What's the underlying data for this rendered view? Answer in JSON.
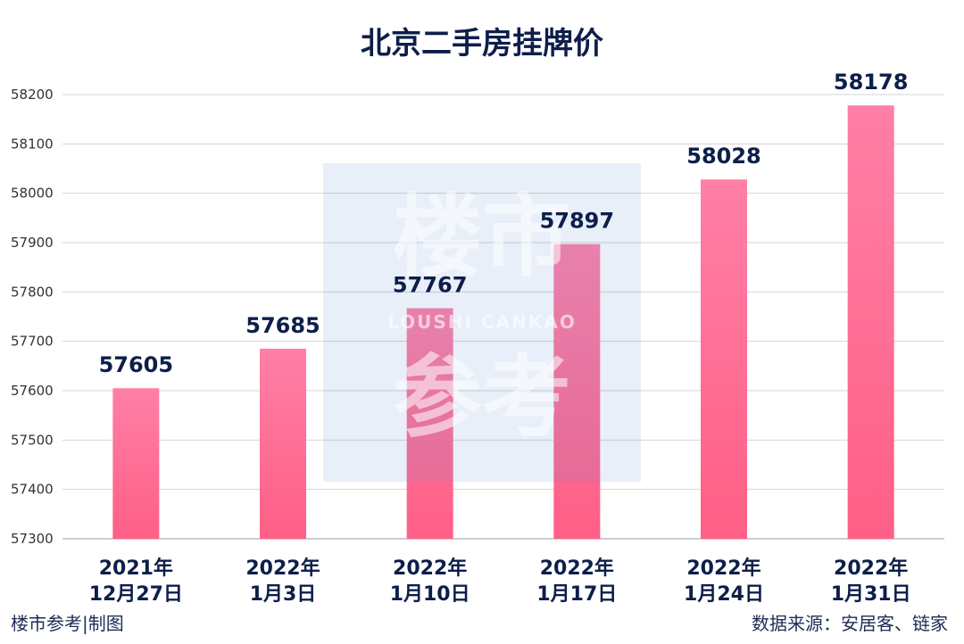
{
  "chart_data": {
    "type": "bar",
    "title": "北京二手房挂牌价",
    "categories": [
      [
        "2021年",
        "12月27日"
      ],
      [
        "2022年",
        "1月3日"
      ],
      [
        "2022年",
        "1月10日"
      ],
      [
        "2022年",
        "1月17日"
      ],
      [
        "2022年",
        "1月24日"
      ],
      [
        "2022年",
        "1月31日"
      ]
    ],
    "values": [
      57605,
      57685,
      57767,
      57897,
      58028,
      58178
    ],
    "ylim": [
      57300,
      58200
    ],
    "yticks": [
      57300,
      57400,
      57500,
      57600,
      57700,
      57800,
      57900,
      58000,
      58100,
      58200
    ],
    "grid": true,
    "bar_color": "#ff7fa6",
    "bar_color_bottom": "#ff5f86"
  },
  "watermark": {
    "line1": "楼市",
    "line2": "LOUSHI CANKAO",
    "line3": "参考",
    "color": "#5b8fd6"
  },
  "footer": {
    "left": "楼市参考|制图",
    "right": "数据来源：安居客、链家"
  }
}
